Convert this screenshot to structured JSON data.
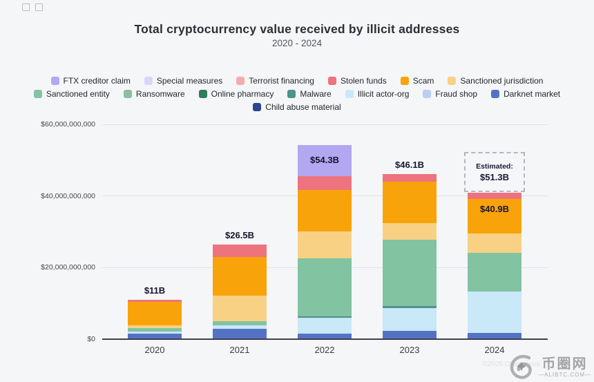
{
  "title": "Total cryptocurrency value received by illicit addresses",
  "subtitle": "2020 - 2024",
  "colors": {
    "FTX creditor claim": "#B2A7F0",
    "Special measures": "#D9D4F8",
    "Terrorist financing": "#F2ACAE",
    "Stolen funds": "#ED737E",
    "Scam": "#F9A30A",
    "Sanctioned jurisdiction": "#F8D185",
    "Sanctioned entity": "#82C3A2",
    "Ransomware": "#8FBD9E",
    "Online pharmacy": "#2F7D5C",
    "Malware": "#4F918C",
    "Illicit actor-org": "#C9E8F8",
    "Fraud shop": "#BACDF3",
    "Darknet market": "#5472C4",
    "Child abuse material": "#2B4590"
  },
  "legend": {
    "rows": [
      [
        "FTX creditor claim",
        "Special measures",
        "Terrorist financing",
        "Stolen funds",
        "Scam",
        "Sanctioned jurisdiction"
      ],
      [
        "Sanctioned entity",
        "Ransomware",
        "Online pharmacy",
        "Malware",
        "Illicit actor-org",
        "Fraud shop",
        "Darknet market"
      ],
      [
        "Child abuse material"
      ]
    ]
  },
  "chart_data": {
    "type": "bar",
    "variant": "stacked",
    "title": "Total cryptocurrency value received by illicit addresses",
    "subtitle": "2020 - 2024",
    "xlabel": "",
    "ylabel": "",
    "units": "USD billions",
    "ylim_billions": [
      0,
      60
    ],
    "grid": true,
    "legend_position": "top",
    "y_ticks": [
      {
        "value_b": 60,
        "label": "$60,000,000,000"
      },
      {
        "value_b": 40,
        "label": "$40,000,000,000"
      },
      {
        "value_b": 20,
        "label": "$20,000,000,000"
      },
      {
        "value_b": 0,
        "label": "$0"
      }
    ],
    "categories": [
      "2020",
      "2021",
      "2022",
      "2023",
      "2024"
    ],
    "bars": [
      {
        "category": "2020",
        "total_b": 11.0,
        "total_label": "$11B",
        "label_inside": false,
        "segments": [
          {
            "name": "Darknet market",
            "value_b": 1.55
          },
          {
            "name": "Illicit actor-org",
            "value_b": 0.55
          },
          {
            "name": "Sanctioned entity",
            "value_b": 0.95
          },
          {
            "name": "Sanctioned jurisdiction",
            "value_b": 0.75
          },
          {
            "name": "Scam",
            "value_b": 6.6
          },
          {
            "name": "Stolen funds",
            "value_b": 0.6
          }
        ]
      },
      {
        "category": "2021",
        "total_b": 26.5,
        "total_label": "$26.5B",
        "label_inside": false,
        "segments": [
          {
            "name": "Darknet market",
            "value_b": 2.9
          },
          {
            "name": "Illicit actor-org",
            "value_b": 1.0
          },
          {
            "name": "Sanctioned entity",
            "value_b": 1.2
          },
          {
            "name": "Sanctioned jurisdiction",
            "value_b": 7.1
          },
          {
            "name": "Scam",
            "value_b": 10.8
          },
          {
            "name": "Stolen funds",
            "value_b": 3.5
          }
        ]
      },
      {
        "category": "2022",
        "total_b": 54.3,
        "total_label": "$54.3B",
        "label_inside": true,
        "label_anchor": "FTX creditor claim",
        "label_anchor_align": "center",
        "segments": [
          {
            "name": "Darknet market",
            "value_b": 1.5
          },
          {
            "name": "Illicit actor-org",
            "value_b": 4.4
          },
          {
            "name": "Malware",
            "value_b": 0.4
          },
          {
            "name": "Sanctioned entity",
            "value_b": 16.3
          },
          {
            "name": "Sanctioned jurisdiction",
            "value_b": 7.5
          },
          {
            "name": "Scam",
            "value_b": 11.6
          },
          {
            "name": "Stolen funds",
            "value_b": 3.9
          },
          {
            "name": "FTX creditor claim",
            "value_b": 8.7
          }
        ]
      },
      {
        "category": "2023",
        "total_b": 46.1,
        "total_label": "$46.1B",
        "label_inside": false,
        "segments": [
          {
            "name": "Darknet market",
            "value_b": 2.3
          },
          {
            "name": "Illicit actor-org",
            "value_b": 6.4
          },
          {
            "name": "Malware",
            "value_b": 0.6
          },
          {
            "name": "Sanctioned entity",
            "value_b": 18.5
          },
          {
            "name": "Sanctioned jurisdiction",
            "value_b": 4.6
          },
          {
            "name": "Scam",
            "value_b": 11.6
          },
          {
            "name": "Stolen funds",
            "value_b": 2.1
          }
        ]
      },
      {
        "category": "2024",
        "total_b": 40.9,
        "total_label": "$40.9B",
        "label_inside": true,
        "label_anchor": "Scam",
        "label_anchor_align": "top",
        "estimated": {
          "prefix": "Estimated:",
          "label": "$51.3B",
          "total_b": 51.3
        },
        "segments": [
          {
            "name": "Darknet market",
            "value_b": 1.7
          },
          {
            "name": "Illicit actor-org",
            "value_b": 11.6
          },
          {
            "name": "Sanctioned entity",
            "value_b": 10.8
          },
          {
            "name": "Sanctioned jurisdiction",
            "value_b": 5.4
          },
          {
            "name": "Scam",
            "value_b": 9.7
          },
          {
            "name": "Stolen funds",
            "value_b": 1.7
          }
        ]
      }
    ]
  },
  "watermark": {
    "cjk": "币圈网",
    "domain": "—ALIBTC.COM—",
    "faint_text": "©2025 Chainalysis"
  }
}
